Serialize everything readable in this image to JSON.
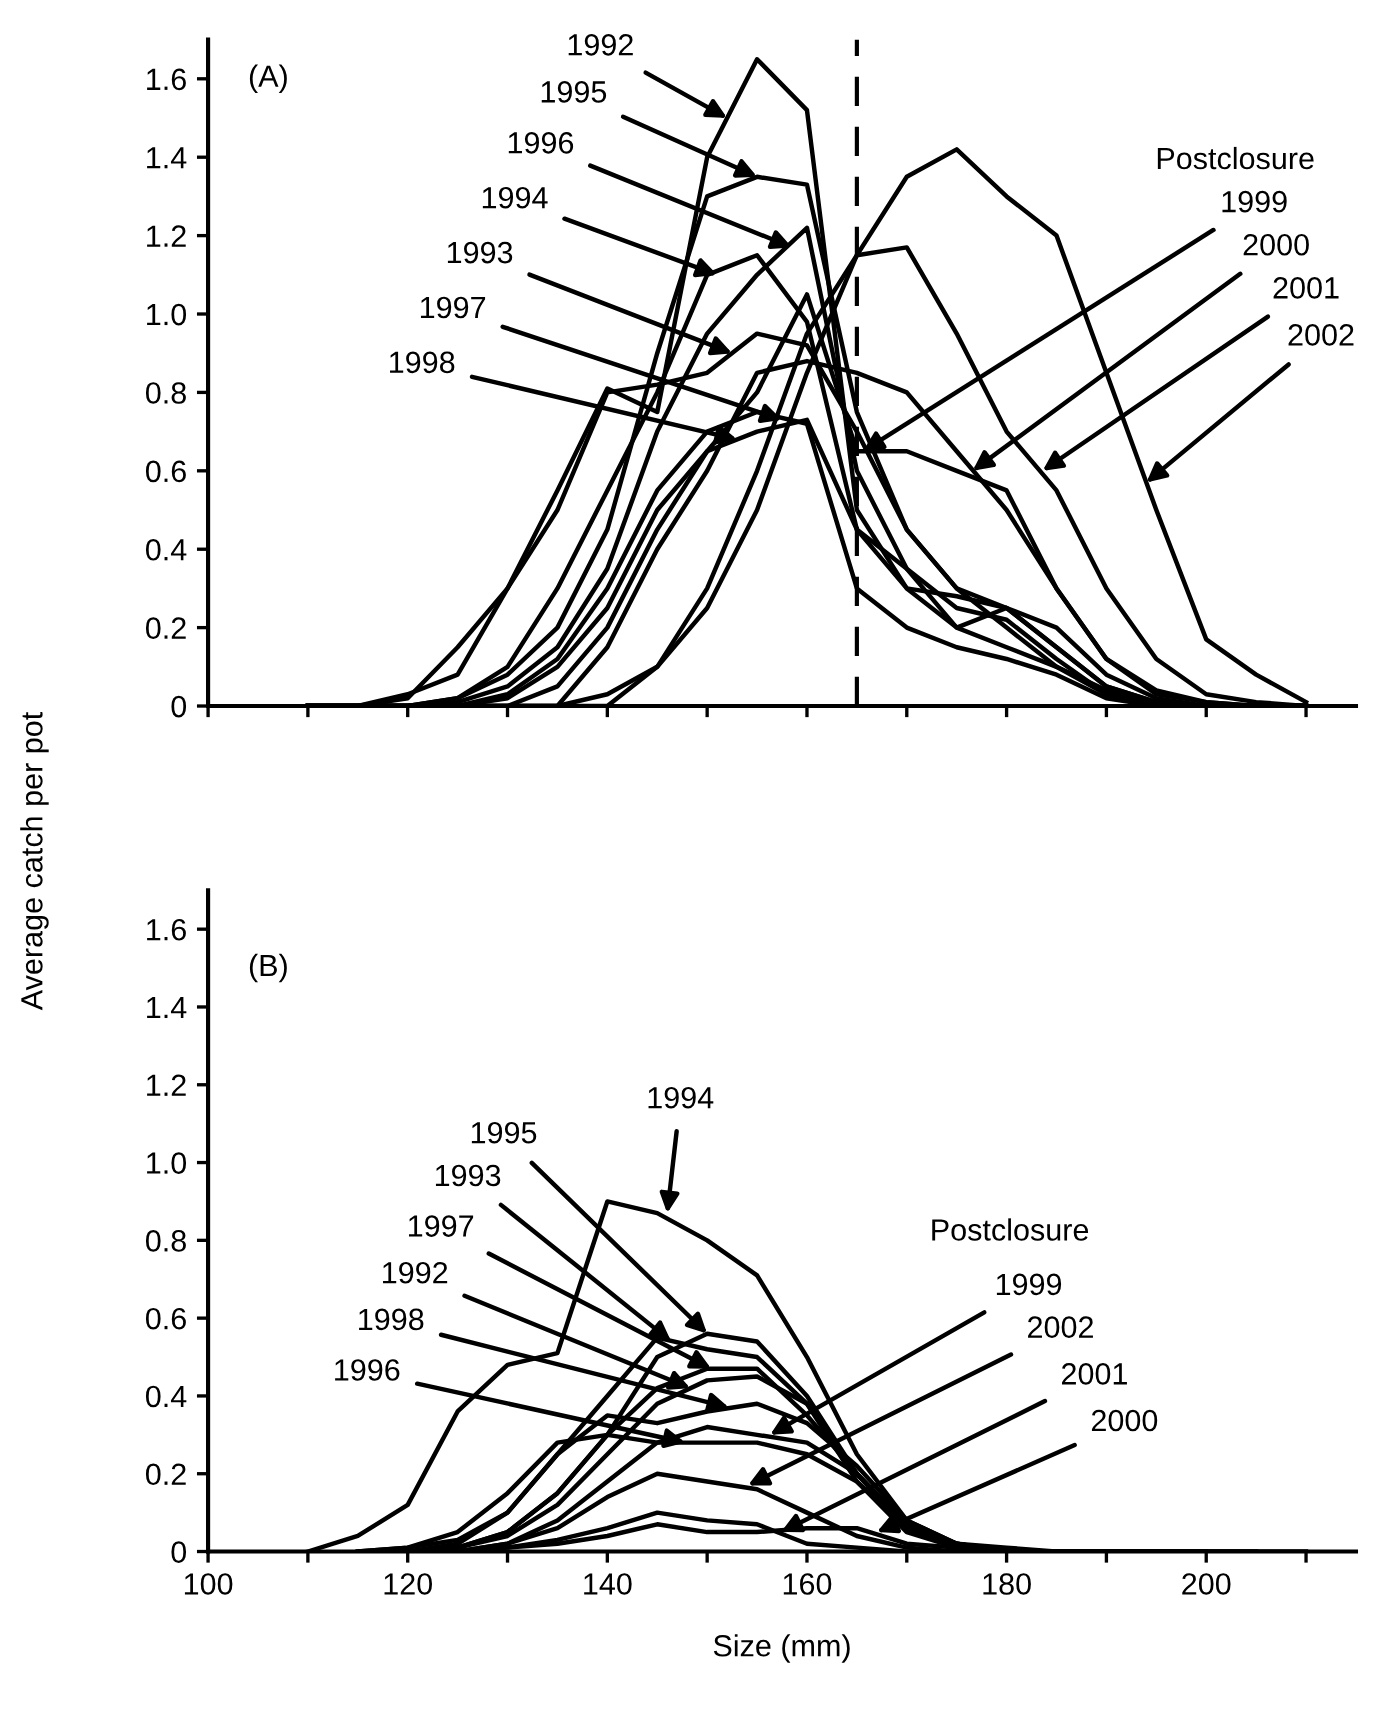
{
  "chart_data": [
    {
      "type": "line",
      "ylabel": "Average catch per pot",
      "tick_labels": "y",
      "grid": false,
      "marker": "none",
      "line_style": "solid",
      "x": [
        110,
        115,
        120,
        125,
        130,
        135,
        140,
        145,
        150,
        155,
        160,
        165,
        170,
        175,
        180,
        185,
        190,
        195,
        200,
        205,
        210
      ],
      "xlim": [
        100,
        215
      ],
      "ylim": [
        0,
        1.7
      ],
      "xticks": [
        100,
        {
          "value": 110,
          "label": null
        },
        120,
        {
          "value": 130,
          "label": null
        },
        140,
        {
          "value": 150,
          "label": null
        },
        160,
        {
          "value": 170,
          "label": null
        },
        180,
        {
          "value": 190,
          "label": null
        },
        200,
        {
          "value": 210,
          "label": null
        }
      ],
      "yticks": [
        0,
        0.2,
        0.4,
        0.6,
        0.8,
        {
          "value": 1,
          "label": "1.0"
        },
        1.2,
        1.4,
        1.6
      ],
      "ref_lines": [
        {
          "axis": "x",
          "value": 165,
          "color": "#000000",
          "line_style": "dashed"
        }
      ],
      "series": [
        {
          "color": "#000000",
          "values": [
            0,
            0,
            0.02,
            0.15,
            0.3,
            0.55,
            0.81,
            0.75,
            1.4,
            1.65,
            1.52,
            0.5,
            0.3,
            0.2,
            0.25,
            0.2,
            0.08,
            0.02,
            0,
            0,
            0
          ]
        },
        {
          "color": "#000000",
          "values": [
            0,
            0,
            0,
            0.02,
            0.08,
            0.2,
            0.45,
            0.9,
            1.3,
            1.35,
            1.33,
            0.75,
            0.45,
            0.3,
            0.25,
            0.15,
            0.05,
            0.01,
            0,
            0,
            0
          ]
        },
        {
          "color": "#000000",
          "values": [
            0,
            0,
            0,
            0.01,
            0.05,
            0.15,
            0.35,
            0.7,
            0.95,
            1.1,
            1.22,
            0.6,
            0.35,
            0.2,
            0.15,
            0.1,
            0.04,
            0.01,
            0,
            0,
            0
          ]
        },
        {
          "color": "#000000",
          "values": [
            0,
            0,
            0,
            0.02,
            0.1,
            0.3,
            0.55,
            0.8,
            1.1,
            1.15,
            0.98,
            0.45,
            0.3,
            0.28,
            0.25,
            0.15,
            0.05,
            0.01,
            0,
            0,
            0
          ]
        },
        {
          "color": "#000000",
          "values": [
            0,
            0,
            0.03,
            0.08,
            0.3,
            0.5,
            0.8,
            0.82,
            0.85,
            0.95,
            0.92,
            0.7,
            0.45,
            0.3,
            0.2,
            0.1,
            0.03,
            0,
            0,
            0,
            0
          ]
        },
        {
          "color": "#000000",
          "values": [
            0,
            0,
            0,
            0,
            0.03,
            0.12,
            0.3,
            0.55,
            0.7,
            0.75,
            0.72,
            0.3,
            0.2,
            0.15,
            0.12,
            0.08,
            0.02,
            0,
            0,
            0,
            0
          ]
        },
        {
          "color": "#000000",
          "values": [
            0,
            0,
            0,
            0,
            0.02,
            0.1,
            0.25,
            0.5,
            0.65,
            0.7,
            0.73,
            0.45,
            0.35,
            0.25,
            0.22,
            0.12,
            0.03,
            0,
            0,
            0,
            0
          ]
        },
        {
          "color": "#000000",
          "values": [
            0,
            0,
            0,
            0,
            0,
            0.05,
            0.2,
            0.45,
            0.65,
            0.8,
            1.05,
            0.65,
            0.65,
            0.6,
            0.55,
            0.3,
            0.12,
            0.03,
            0.01,
            0,
            0
          ]
        },
        {
          "color": "#000000",
          "values": [
            0,
            0,
            0,
            0,
            0,
            0,
            0.15,
            0.4,
            0.6,
            0.85,
            0.88,
            0.85,
            0.8,
            0.65,
            0.5,
            0.3,
            0.12,
            0.04,
            0.01,
            0,
            0
          ]
        },
        {
          "color": "#000000",
          "values": [
            0,
            0,
            0,
            0,
            0,
            0,
            0,
            0.1,
            0.3,
            0.6,
            0.95,
            1.15,
            1.17,
            0.95,
            0.7,
            0.55,
            0.3,
            0.12,
            0.03,
            0.01,
            0
          ]
        },
        {
          "color": "#000000",
          "values": [
            0,
            0,
            0,
            0,
            0,
            0,
            0.03,
            0.1,
            0.25,
            0.5,
            0.85,
            1.15,
            1.35,
            1.42,
            1.3,
            1.2,
            0.85,
            0.5,
            0.17,
            0.08,
            0.01
          ]
        }
      ],
      "annotations": [
        "(A)",
        {
          "text": "1992",
          "x": 152,
          "y": 1.5
        },
        {
          "text": "1995",
          "x": 155,
          "y": 1.35
        },
        {
          "text": "1996",
          "x": 158.5,
          "y": 1.17
        },
        {
          "text": "1994",
          "x": 151,
          "y": 1.1
        },
        {
          "text": "1993",
          "x": 152.5,
          "y": 0.9
        },
        {
          "text": "1997",
          "x": 157.5,
          "y": 0.73
        },
        {
          "text": "1998",
          "x": 153,
          "y": 0.68
        },
        "Postclosure",
        {
          "text": "1999",
          "x": 165.6,
          "y": 0.65
        },
        {
          "text": "2000",
          "x": 176.6,
          "y": 0.6
        },
        {
          "text": "2001",
          "x": 183.6,
          "y": 0.6
        },
        {
          "text": "2002",
          "x": 194,
          "y": 0.57
        }
      ]
    },
    {
      "type": "line",
      "xlabel": "Size (mm)",
      "grid": false,
      "marker": "none",
      "line_style": "solid",
      "xlim": [
        100,
        215
      ],
      "ylim": [
        0,
        1.7
      ],
      "xticks": [
        100,
        {
          "value": 110,
          "label": null
        },
        120,
        {
          "value": 130,
          "label": null
        },
        140,
        {
          "value": 150,
          "label": null
        },
        160,
        {
          "value": 170,
          "label": null
        },
        180,
        {
          "value": 190,
          "label": null
        },
        200,
        {
          "value": 210,
          "label": null
        }
      ],
      "yticks": [
        0,
        0.2,
        0.4,
        0.6,
        0.8,
        {
          "value": 1,
          "label": "1.0"
        },
        1.2,
        1.4,
        1.6
      ],
      "series": [
        {
          "color": "#000000",
          "x": [
            110,
            115,
            120,
            125,
            130,
            135,
            140,
            145,
            150,
            155,
            160,
            165,
            170,
            175,
            180,
            185
          ],
          "values": [
            0,
            0.04,
            0.12,
            0.36,
            0.48,
            0.51,
            0.9,
            0.87,
            0.8,
            0.71,
            0.5,
            0.25,
            0.08,
            0.02,
            0.01,
            0
          ]
        },
        {
          "color": "#000000",
          "x": [
            120,
            125,
            130,
            135,
            140,
            145,
            150,
            155,
            160,
            165,
            170,
            175,
            180
          ],
          "values": [
            0,
            0.01,
            0.05,
            0.15,
            0.3,
            0.5,
            0.56,
            0.54,
            0.4,
            0.2,
            0.06,
            0.02,
            0
          ]
        },
        {
          "color": "#000000",
          "x": [
            115,
            120,
            125,
            130,
            135,
            140,
            145,
            150,
            155,
            160,
            165,
            170,
            175,
            180
          ],
          "values": [
            0,
            0.01,
            0.03,
            0.1,
            0.25,
            0.4,
            0.55,
            0.52,
            0.5,
            0.38,
            0.18,
            0.05,
            0.01,
            0
          ]
        },
        {
          "color": "#000000",
          "x": [
            120,
            125,
            130,
            135,
            140,
            145,
            150,
            155,
            160,
            165,
            170,
            175
          ],
          "values": [
            0,
            0.01,
            0.05,
            0.15,
            0.3,
            0.42,
            0.47,
            0.47,
            0.35,
            0.2,
            0.06,
            0.01
          ]
        },
        {
          "color": "#000000",
          "x": [
            125,
            130,
            135,
            140,
            145,
            150,
            155,
            160,
            165,
            170,
            175,
            180,
            185,
            190
          ],
          "values": [
            0.01,
            0.04,
            0.12,
            0.25,
            0.38,
            0.44,
            0.45,
            0.38,
            0.2,
            0.07,
            0.02,
            0,
            0,
            0
          ]
        },
        {
          "color": "#000000",
          "x": [
            120,
            125,
            130,
            135,
            140,
            145,
            150,
            155,
            160,
            165,
            170,
            175,
            180,
            185
          ],
          "values": [
            0,
            0.02,
            0.1,
            0.25,
            0.35,
            0.33,
            0.36,
            0.38,
            0.33,
            0.22,
            0.08,
            0.02,
            0,
            0
          ]
        },
        {
          "color": "#000000",
          "x": [
            115,
            120,
            125,
            130,
            135,
            140,
            145,
            150,
            155,
            160,
            165,
            170,
            175,
            180,
            185,
            190,
            195
          ],
          "values": [
            0,
            0.01,
            0.05,
            0.15,
            0.28,
            0.3,
            0.28,
            0.28,
            0.28,
            0.25,
            0.18,
            0.06,
            0.01,
            0,
            0,
            0,
            0
          ]
        },
        {
          "color": "#000000",
          "x": [
            125,
            130,
            135,
            140,
            145,
            150,
            155,
            160,
            165,
            170,
            175,
            180,
            185,
            190,
            195,
            200
          ],
          "values": [
            0,
            0.02,
            0.08,
            0.18,
            0.28,
            0.32,
            0.3,
            0.28,
            0.2,
            0.07,
            0.02,
            0,
            0,
            0,
            0,
            0
          ]
        },
        {
          "color": "#000000",
          "x": [
            125,
            130,
            135,
            140,
            145,
            150,
            155,
            160,
            165,
            170,
            175,
            180,
            185,
            190,
            195,
            200,
            205,
            210
          ],
          "values": [
            0,
            0.02,
            0.06,
            0.14,
            0.2,
            0.18,
            0.16,
            0.1,
            0.04,
            0.01,
            0,
            0,
            0,
            0,
            0,
            0,
            0,
            0
          ]
        },
        {
          "color": "#000000",
          "x": [
            125,
            130,
            135,
            140,
            145,
            150,
            155,
            160,
            165,
            170
          ],
          "values": [
            0,
            0.01,
            0.03,
            0.06,
            0.1,
            0.08,
            0.07,
            0.02,
            0.01,
            0
          ]
        },
        {
          "color": "#000000",
          "x": [
            125,
            130,
            135,
            140,
            145,
            150,
            155,
            160,
            165,
            170,
            175,
            180,
            185,
            190,
            195,
            200,
            205
          ],
          "values": [
            0,
            0.01,
            0.02,
            0.04,
            0.07,
            0.05,
            0.05,
            0.06,
            0.06,
            0.02,
            0.01,
            0,
            0,
            0,
            0,
            0,
            0
          ]
        }
      ],
      "annotations": [
        "(B)",
        {
          "text": "1994",
          "x": 146,
          "y": 0.87
        },
        {
          "text": "1995",
          "x": 150,
          "y": 0.56
        },
        {
          "text": "1993",
          "x": 146.4,
          "y": 0.54
        },
        {
          "text": "1997",
          "x": 150.4,
          "y": 0.47
        },
        {
          "text": "1992",
          "x": 148.3,
          "y": 0.42
        },
        {
          "text": "1998",
          "x": 152.2,
          "y": 0.37
        },
        {
          "text": "1996",
          "x": 147.8,
          "y": 0.28
        },
        "Postclosure",
        {
          "text": "1999",
          "x": 156.3,
          "y": 0.3
        },
        {
          "text": "2002",
          "x": 154.1,
          "y": 0.17
        },
        {
          "text": "2001",
          "x": 157.4,
          "y": 0.05
        },
        {
          "text": "2000",
          "x": 167,
          "y": 0.05
        }
      ]
    }
  ]
}
